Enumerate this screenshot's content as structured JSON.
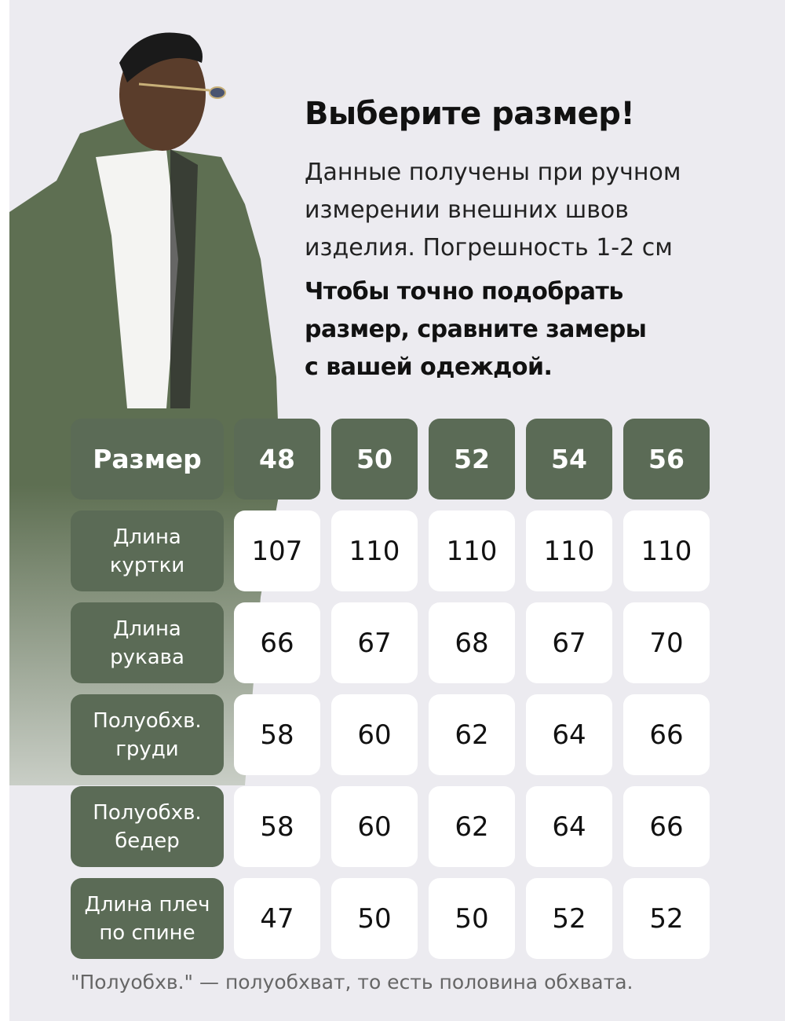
{
  "heading": "Выберите размер!",
  "description": [
    "Данные получены при ручном",
    "измерении внешних швов",
    "изделия. Погрешность 1-2 см"
  ],
  "advice": [
    "Чтобы точно подобрать",
    "размер, сравните замеры",
    "с вашей одеждой."
  ],
  "table": {
    "header_label": "Размер",
    "sizes": [
      "48",
      "50",
      "52",
      "54",
      "56"
    ],
    "rows": [
      {
        "label": [
          "Длина",
          "куртки"
        ],
        "values": [
          "107",
          "110",
          "110",
          "110",
          "110"
        ]
      },
      {
        "label": [
          "Длина",
          "рукава"
        ],
        "values": [
          "66",
          "67",
          "68",
          "67",
          "70"
        ]
      },
      {
        "label": [
          "Полуобхв.",
          "груди"
        ],
        "values": [
          "58",
          "60",
          "62",
          "64",
          "66"
        ]
      },
      {
        "label": [
          "Полуобхв.",
          "бедер"
        ],
        "values": [
          "58",
          "60",
          "62",
          "64",
          "66"
        ]
      },
      {
        "label": [
          "Длина плеч",
          "по спине"
        ],
        "values": [
          "47",
          "50",
          "50",
          "52",
          "52"
        ]
      }
    ]
  },
  "footnote": "\"Полуобхв.\" — полуобхват, то есть половина обхвата.",
  "colors": {
    "accent": "#5b6b56",
    "background": "#ecebf0"
  }
}
